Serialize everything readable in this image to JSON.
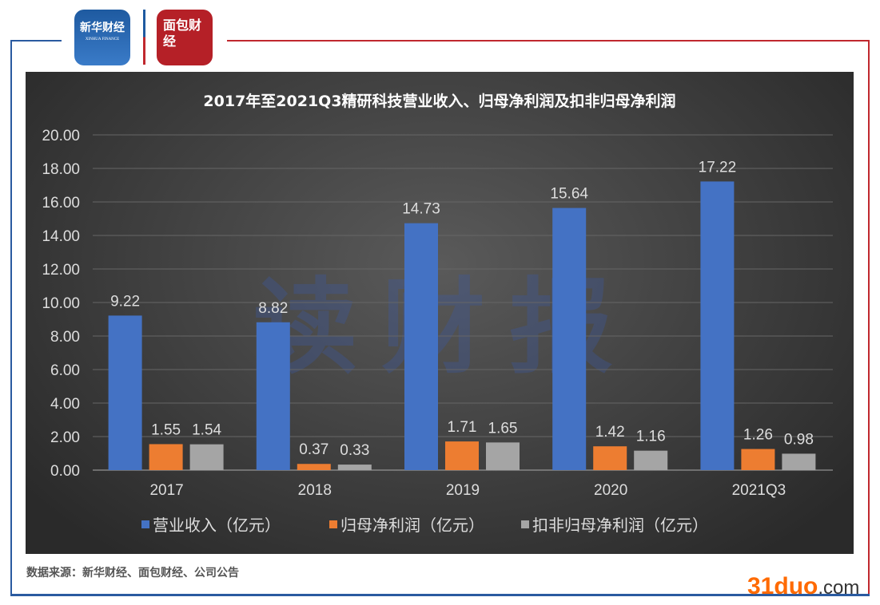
{
  "logos": {
    "xinhua": "新华财经",
    "xinhua_en": "XINHUA FINANCE",
    "mianbao": "面包财经"
  },
  "watermark": "读财报",
  "source": "数据来源：新华财经、面包财经、公司公告",
  "site": {
    "main": "31duo",
    "suffix": ".com"
  },
  "colors": {
    "revenue": "#4472c4",
    "net_profit": "#ed7d31",
    "deducted": "#a5a5a5"
  },
  "chart_data": {
    "type": "bar",
    "title": "2017年至2021Q3精研科技营业收入、归母净利润及扣非归母净利润",
    "categories": [
      "2017",
      "2018",
      "2019",
      "2020",
      "2021Q3"
    ],
    "ylim": [
      0,
      20
    ],
    "yticks": [
      "0.00",
      "2.00",
      "4.00",
      "6.00",
      "8.00",
      "10.00",
      "12.00",
      "14.00",
      "16.00",
      "18.00",
      "20.00"
    ],
    "grid": true,
    "legend_position": "bottom",
    "series": [
      {
        "name": "营业收入（亿元）",
        "values": [
          9.22,
          8.82,
          14.73,
          15.64,
          17.22
        ],
        "labels": [
          "9.22",
          "8.82",
          "14.73",
          "15.64",
          "17.22"
        ]
      },
      {
        "name": "归母净利润（亿元）",
        "values": [
          1.55,
          0.37,
          1.71,
          1.42,
          1.26
        ],
        "labels": [
          "1.55",
          "0.37",
          "1.71",
          "1.42",
          "1.26"
        ]
      },
      {
        "name": "扣非归母净利润（亿元）",
        "values": [
          1.54,
          0.33,
          1.65,
          1.16,
          0.98
        ],
        "labels": [
          "1.54",
          "0.33",
          "1.65",
          "1.16",
          "0.98"
        ]
      }
    ]
  }
}
